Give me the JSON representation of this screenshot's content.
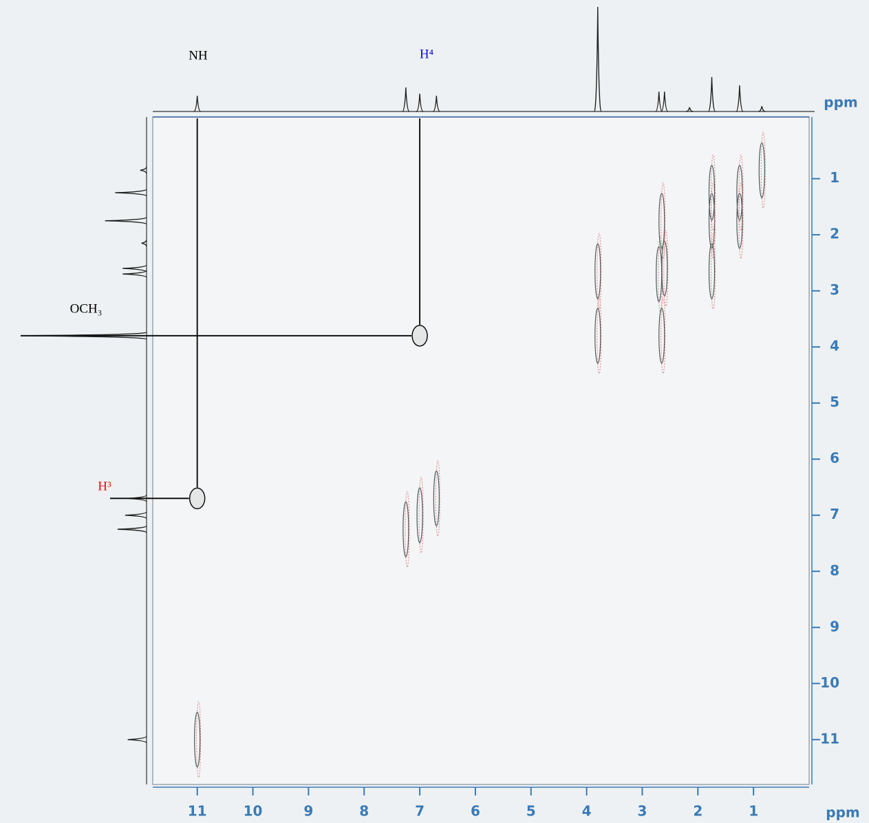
{
  "chart_data": {
    "type": "nmr2d",
    "x_label": "ppm",
    "y_label": "ppm",
    "xlim": [
      11.8,
      0
    ],
    "ylim": [
      -0.1,
      11.8
    ],
    "xticks": [
      11,
      10,
      9,
      8,
      7,
      6,
      5,
      4,
      3,
      2,
      1
    ],
    "yticks": [
      1,
      2,
      3,
      4,
      5,
      6,
      7,
      8,
      9,
      10,
      11
    ],
    "color": "#3a7ab5",
    "projection": {
      "x": [
        11.0,
        7.25,
        7.0,
        6.7,
        3.8,
        2.7,
        2.6,
        2.15,
        1.75,
        1.25,
        0.85
      ],
      "heights": [
        15,
        23,
        17,
        15,
        100,
        19,
        19,
        4,
        33,
        25,
        5
      ]
    },
    "cross_peaks": {
      "x": [
        11.0,
        7.25,
        7.0,
        6.7,
        3.8,
        2.7,
        2.6,
        1.75,
        1.25,
        0.85,
        2.65,
        1.75,
        1.25,
        1.75,
        3.8,
        2.65
      ],
      "y": [
        11.0,
        7.25,
        7.0,
        6.7,
        3.8,
        2.7,
        2.6,
        1.75,
        1.25,
        0.85,
        1.75,
        2.65,
        1.75,
        1.25,
        2.65,
        3.8
      ]
    },
    "correlations": [
      {
        "x": 11.0,
        "y": 6.7
      },
      {
        "x": 7.0,
        "y": 3.8
      }
    ],
    "annotations": [
      {
        "text": "NH",
        "color": "#000000"
      },
      {
        "text": "H⁴",
        "color": "#1010d0"
      },
      {
        "text": "OCH₃",
        "color": "#000000"
      },
      {
        "text": "H³",
        "color": "#e01010"
      }
    ]
  }
}
